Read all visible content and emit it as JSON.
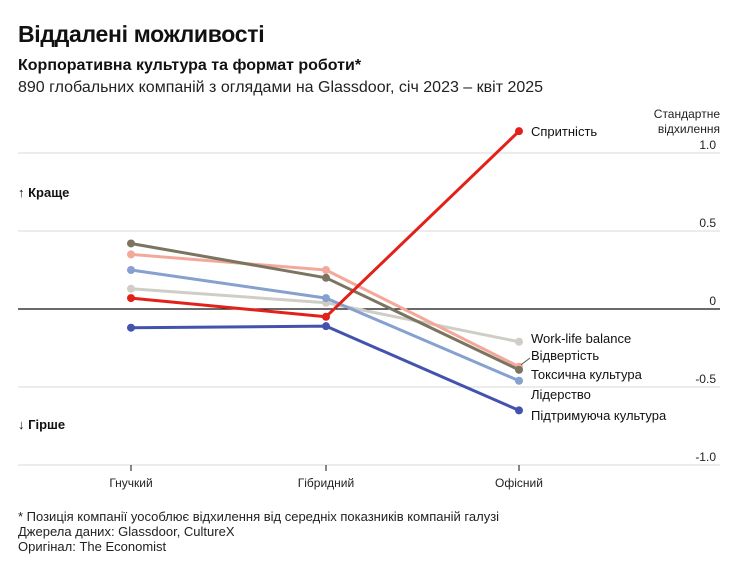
{
  "header": {
    "title": "Віддалені можливості",
    "subtitle": "Корпоративна культура та формат роботи*",
    "description": "890 глобальних компаній з оглядами на Glassdoor, січ 2023 – квіт 2025"
  },
  "footer": {
    "note": "* Позиція компанії уособлює відхилення від середніх показників компаній галузі",
    "sources": "Джерела даних: Glassdoor, CultureX",
    "original": "Оригінал: The Economist"
  },
  "chart_data": {
    "type": "line",
    "categories": [
      "Гнучкий",
      "Гібридний",
      "Офісний"
    ],
    "ylabel": "Стандартне відхилення",
    "ylim": [
      -1.0,
      1.0
    ],
    "yticks": [
      "1.0",
      "0.5",
      "0",
      "-0.5",
      "-1.0"
    ],
    "better_label": "↑ Краще",
    "worse_label": "↓ Гірше",
    "grid": true,
    "series": [
      {
        "name": "Спритність",
        "values": [
          0.07,
          -0.05,
          1.14
        ],
        "color": "#e3211b"
      },
      {
        "name": "Work-life balance",
        "values": [
          0.13,
          0.04,
          -0.21
        ],
        "color": "#cfcdc6"
      },
      {
        "name": "Відвертість",
        "values": [
          0.35,
          0.25,
          -0.37
        ],
        "color": "#f2a99a"
      },
      {
        "name": "Токсична культура",
        "values": [
          0.42,
          0.2,
          -0.39
        ],
        "color": "#7b7461"
      },
      {
        "name": "Лідерство",
        "values": [
          0.25,
          0.07,
          -0.46
        ],
        "color": "#86a0cf"
      },
      {
        "name": "Підтримуюча культура",
        "values": [
          -0.12,
          -0.11,
          -0.65
        ],
        "color": "#4353ad"
      }
    ]
  }
}
